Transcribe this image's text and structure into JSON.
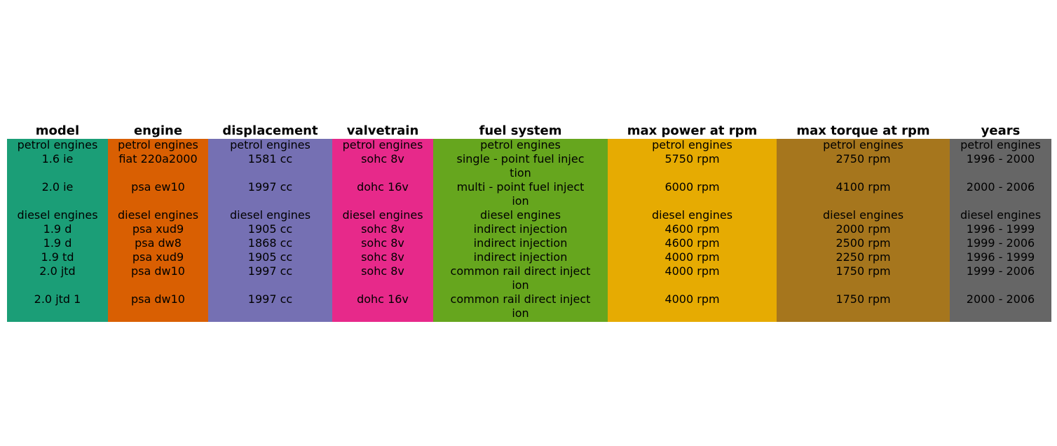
{
  "chart_data": {
    "type": "table",
    "columns": [
      {
        "header": "model",
        "color": "#1b9e77",
        "lines": [
          "petrol engines",
          "1.6 ie",
          "",
          "2.0 ie",
          "",
          "diesel engines",
          "1.9 d",
          "1.9 d",
          "1.9 td",
          "2.0 jtd",
          "",
          "2.0 jtd 1",
          ""
        ]
      },
      {
        "header": "engine",
        "color": "#d95f02",
        "lines": [
          "petrol engines",
          "fiat 220a2000",
          "",
          "psa ew10",
          "",
          "diesel engines",
          "psa xud9",
          "psa dw8",
          "psa xud9",
          "psa dw10",
          "",
          "psa dw10",
          ""
        ]
      },
      {
        "header": "displacement",
        "color": "#7570b3",
        "lines": [
          "petrol engines",
          "1581 cc",
          "",
          "1997 cc",
          "",
          "diesel engines",
          "1905 cc",
          "1868 cc",
          "1905 cc",
          "1997 cc",
          "",
          "1997 cc",
          ""
        ]
      },
      {
        "header": "valvetrain",
        "color": "#e7298a",
        "lines": [
          "petrol engines",
          "sohc 8v",
          "",
          "dohc 16v",
          "",
          "diesel engines",
          "sohc 8v",
          "sohc 8v",
          "sohc 8v",
          "sohc 8v",
          "",
          "dohc 16v",
          ""
        ]
      },
      {
        "header": "fuel system",
        "color": "#66a61e",
        "lines": [
          "petrol engines",
          "single - point fuel injec",
          "tion",
          "multi - point fuel inject",
          "ion",
          "diesel engines",
          "indirect injection",
          "indirect injection",
          "indirect injection",
          "common rail direct inject",
          "ion",
          "common rail direct inject",
          "ion"
        ]
      },
      {
        "header": "max power at rpm",
        "color": "#e6ab02",
        "lines": [
          "petrol engines",
          "5750 rpm",
          "",
          "6000 rpm",
          "",
          "diesel engines",
          "4600 rpm",
          "4600 rpm",
          "4000 rpm",
          "4000 rpm",
          "",
          "4000 rpm",
          ""
        ]
      },
      {
        "header": "max torque at rpm",
        "color": "#a6761d",
        "lines": [
          "petrol engines",
          "2750 rpm",
          "",
          "4100 rpm",
          "",
          "diesel engines",
          "2000 rpm",
          "2500 rpm",
          "2250 rpm",
          "1750 rpm",
          "",
          "1750 rpm",
          ""
        ]
      },
      {
        "header": "years",
        "color": "#666666",
        "lines": [
          "petrol engines",
          "1996 - 2000",
          "",
          "2000 - 2006",
          "",
          "diesel engines",
          "1996 - 1999",
          "1999 - 2006",
          "1996 - 1999",
          "1999 - 2006",
          "",
          "2000 - 2006",
          ""
        ]
      }
    ]
  }
}
